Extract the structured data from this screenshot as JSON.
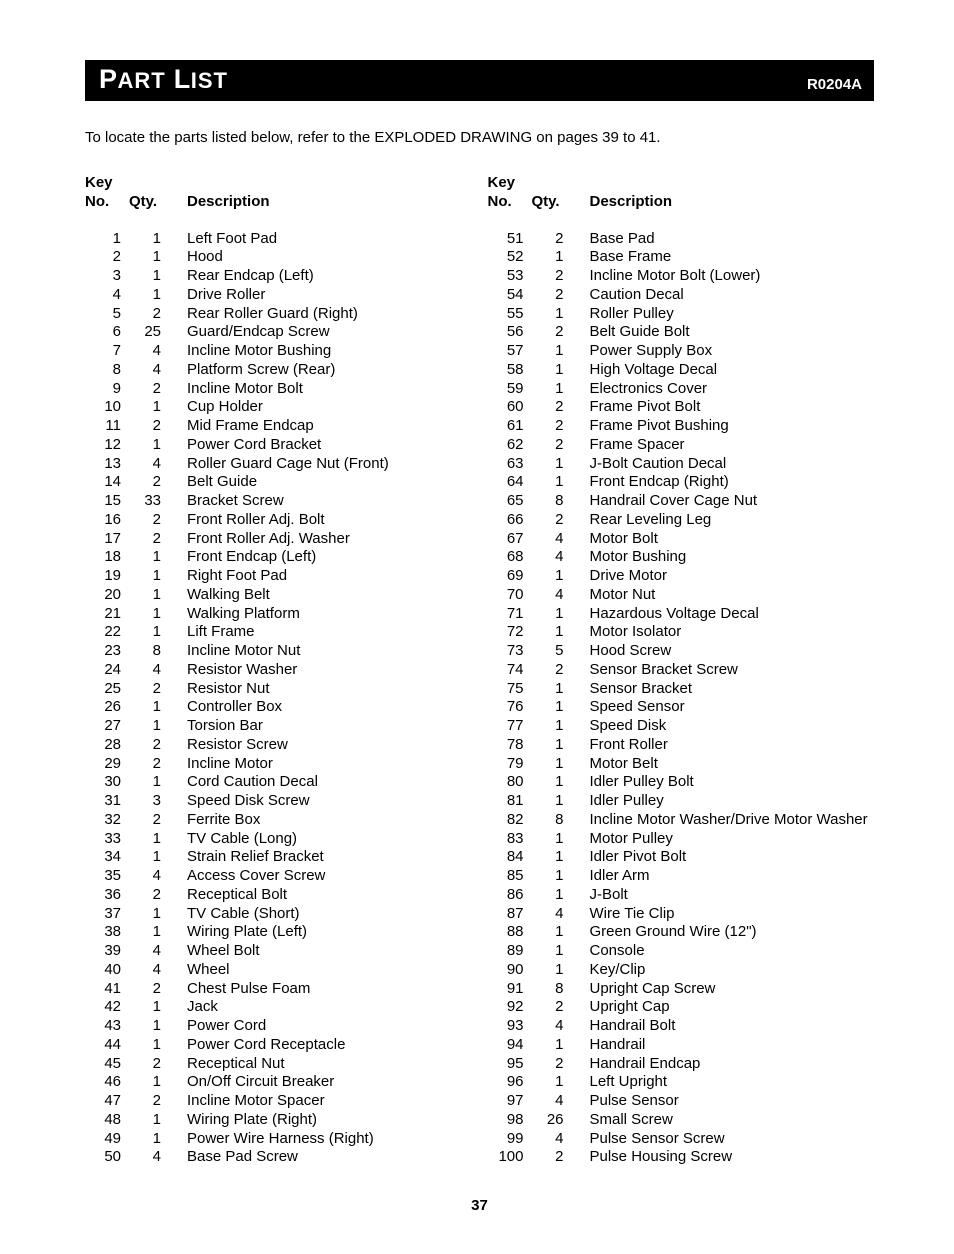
{
  "header": {
    "title_big": "P",
    "title_rest": "ART",
    "title_big2": "L",
    "title_rest2": "IST",
    "code": "R0204A"
  },
  "intro_text": "To locate the parts listed below, refer to the EXPLODED DRAWING on pages 39 to 41.",
  "table_header": {
    "key_line1": "Key",
    "key_line2": "No.",
    "qty": "Qty.",
    "desc": "Description"
  },
  "left_rows": [
    {
      "k": "1",
      "q": "1",
      "d": "Left Foot Pad"
    },
    {
      "k": "2",
      "q": "1",
      "d": "Hood"
    },
    {
      "k": "3",
      "q": "1",
      "d": "Rear Endcap (Left)"
    },
    {
      "k": "4",
      "q": "1",
      "d": "Drive Roller"
    },
    {
      "k": "5",
      "q": "2",
      "d": "Rear Roller Guard (Right)"
    },
    {
      "k": "6",
      "q": "25",
      "d": "Guard/Endcap Screw"
    },
    {
      "k": "7",
      "q": "4",
      "d": "Incline Motor Bushing"
    },
    {
      "k": "8",
      "q": "4",
      "d": "Platform Screw (Rear)"
    },
    {
      "k": "9",
      "q": "2",
      "d": "Incline Motor Bolt"
    },
    {
      "k": "10",
      "q": "1",
      "d": "Cup Holder"
    },
    {
      "k": "11",
      "q": "2",
      "d": "Mid Frame Endcap"
    },
    {
      "k": "12",
      "q": "1",
      "d": "Power Cord Bracket"
    },
    {
      "k": "13",
      "q": "4",
      "d": "Roller Guard Cage Nut (Front)"
    },
    {
      "k": "14",
      "q": "2",
      "d": "Belt Guide"
    },
    {
      "k": "15",
      "q": "33",
      "d": "Bracket Screw"
    },
    {
      "k": "16",
      "q": "2",
      "d": "Front Roller Adj. Bolt"
    },
    {
      "k": "17",
      "q": "2",
      "d": "Front Roller Adj. Washer"
    },
    {
      "k": "18",
      "q": "1",
      "d": "Front Endcap (Left)"
    },
    {
      "k": "19",
      "q": "1",
      "d": "Right Foot Pad"
    },
    {
      "k": "20",
      "q": "1",
      "d": "Walking Belt"
    },
    {
      "k": "21",
      "q": "1",
      "d": "Walking Platform"
    },
    {
      "k": "22",
      "q": "1",
      "d": "Lift Frame"
    },
    {
      "k": "23",
      "q": "8",
      "d": "Incline Motor Nut"
    },
    {
      "k": "24",
      "q": "4",
      "d": "Resistor Washer"
    },
    {
      "k": "25",
      "q": "2",
      "d": "Resistor Nut"
    },
    {
      "k": "26",
      "q": "1",
      "d": "Controller Box"
    },
    {
      "k": "27",
      "q": "1",
      "d": "Torsion Bar"
    },
    {
      "k": "28",
      "q": "2",
      "d": "Resistor Screw"
    },
    {
      "k": "29",
      "q": "2",
      "d": "Incline Motor"
    },
    {
      "k": "30",
      "q": "1",
      "d": "Cord Caution Decal"
    },
    {
      "k": "31",
      "q": "3",
      "d": "Speed Disk Screw"
    },
    {
      "k": "32",
      "q": "2",
      "d": "Ferrite Box"
    },
    {
      "k": "33",
      "q": "1",
      "d": "TV Cable (Long)"
    },
    {
      "k": "34",
      "q": "1",
      "d": "Strain Relief Bracket"
    },
    {
      "k": "35",
      "q": "4",
      "d": "Access Cover Screw"
    },
    {
      "k": "36",
      "q": "2",
      "d": "Receptical Bolt"
    },
    {
      "k": "37",
      "q": "1",
      "d": "TV Cable (Short)"
    },
    {
      "k": "38",
      "q": "1",
      "d": "Wiring Plate (Left)"
    },
    {
      "k": "39",
      "q": "4",
      "d": "Wheel Bolt"
    },
    {
      "k": "40",
      "q": "4",
      "d": "Wheel"
    },
    {
      "k": "41",
      "q": "2",
      "d": "Chest Pulse Foam"
    },
    {
      "k": "42",
      "q": "1",
      "d": "Jack"
    },
    {
      "k": "43",
      "q": "1",
      "d": "Power Cord"
    },
    {
      "k": "44",
      "q": "1",
      "d": "Power Cord Receptacle"
    },
    {
      "k": "45",
      "q": "2",
      "d": "Receptical Nut"
    },
    {
      "k": "46",
      "q": "1",
      "d": "On/Off Circuit Breaker"
    },
    {
      "k": "47",
      "q": "2",
      "d": "Incline Motor Spacer"
    },
    {
      "k": "48",
      "q": "1",
      "d": "Wiring Plate (Right)"
    },
    {
      "k": "49",
      "q": "1",
      "d": "Power Wire Harness (Right)"
    },
    {
      "k": "50",
      "q": "4",
      "d": "Base Pad Screw"
    }
  ],
  "right_rows": [
    {
      "k": "51",
      "q": "2",
      "d": "Base Pad"
    },
    {
      "k": "52",
      "q": "1",
      "d": "Base Frame"
    },
    {
      "k": "53",
      "q": "2",
      "d": "Incline Motor Bolt (Lower)"
    },
    {
      "k": "54",
      "q": "2",
      "d": "Caution Decal"
    },
    {
      "k": "55",
      "q": "1",
      "d": "Roller Pulley"
    },
    {
      "k": "56",
      "q": "2",
      "d": "Belt Guide Bolt"
    },
    {
      "k": "57",
      "q": "1",
      "d": "Power Supply Box"
    },
    {
      "k": "58",
      "q": "1",
      "d": "High Voltage Decal"
    },
    {
      "k": "59",
      "q": "1",
      "d": "Electronics Cover"
    },
    {
      "k": "60",
      "q": "2",
      "d": "Frame Pivot Bolt"
    },
    {
      "k": "61",
      "q": "2",
      "d": "Frame Pivot Bushing"
    },
    {
      "k": "62",
      "q": "2",
      "d": "Frame Spacer"
    },
    {
      "k": "63",
      "q": "1",
      "d": "J-Bolt Caution Decal"
    },
    {
      "k": "64",
      "q": "1",
      "d": "Front Endcap (Right)"
    },
    {
      "k": "65",
      "q": "8",
      "d": "Handrail Cover Cage Nut"
    },
    {
      "k": "66",
      "q": "2",
      "d": "Rear Leveling Leg"
    },
    {
      "k": "67",
      "q": "4",
      "d": "Motor Bolt"
    },
    {
      "k": "68",
      "q": "4",
      "d": "Motor Bushing"
    },
    {
      "k": "69",
      "q": "1",
      "d": "Drive Motor"
    },
    {
      "k": "70",
      "q": "4",
      "d": "Motor Nut"
    },
    {
      "k": "71",
      "q": "1",
      "d": "Hazardous Voltage Decal"
    },
    {
      "k": "72",
      "q": "1",
      "d": "Motor Isolator"
    },
    {
      "k": "73",
      "q": "5",
      "d": "Hood Screw"
    },
    {
      "k": "74",
      "q": "2",
      "d": "Sensor Bracket Screw"
    },
    {
      "k": "75",
      "q": "1",
      "d": "Sensor Bracket"
    },
    {
      "k": "76",
      "q": "1",
      "d": "Speed Sensor"
    },
    {
      "k": "77",
      "q": "1",
      "d": "Speed Disk"
    },
    {
      "k": "78",
      "q": "1",
      "d": "Front Roller"
    },
    {
      "k": "79",
      "q": "1",
      "d": "Motor Belt"
    },
    {
      "k": "80",
      "q": "1",
      "d": "Idler Pulley Bolt"
    },
    {
      "k": "81",
      "q": "1",
      "d": "Idler Pulley"
    },
    {
      "k": "82",
      "q": "8",
      "d": "Incline Motor Washer/Drive Motor Washer"
    },
    {
      "k": "83",
      "q": "1",
      "d": "Motor Pulley"
    },
    {
      "k": "84",
      "q": "1",
      "d": "Idler Pivot Bolt"
    },
    {
      "k": "85",
      "q": "1",
      "d": "Idler Arm"
    },
    {
      "k": "86",
      "q": "1",
      "d": "J-Bolt"
    },
    {
      "k": "87",
      "q": "4",
      "d": "Wire Tie Clip"
    },
    {
      "k": "88",
      "q": "1",
      "d": "Green Ground Wire (12\")"
    },
    {
      "k": "89",
      "q": "1",
      "d": "Console"
    },
    {
      "k": "90",
      "q": "1",
      "d": "Key/Clip"
    },
    {
      "k": "91",
      "q": "8",
      "d": "Upright Cap Screw"
    },
    {
      "k": "92",
      "q": "2",
      "d": "Upright Cap"
    },
    {
      "k": "93",
      "q": "4",
      "d": "Handrail Bolt"
    },
    {
      "k": "94",
      "q": "1",
      "d": "Handrail"
    },
    {
      "k": "95",
      "q": "2",
      "d": "Handrail Endcap"
    },
    {
      "k": "96",
      "q": "1",
      "d": "Left Upright"
    },
    {
      "k": "97",
      "q": "4",
      "d": "Pulse Sensor"
    },
    {
      "k": "98",
      "q": "26",
      "d": "Small Screw"
    },
    {
      "k": "99",
      "q": "4",
      "d": "Pulse Sensor Screw"
    },
    {
      "k": "100",
      "q": "2",
      "d": "Pulse Housing Screw"
    }
  ],
  "page_number": "37"
}
